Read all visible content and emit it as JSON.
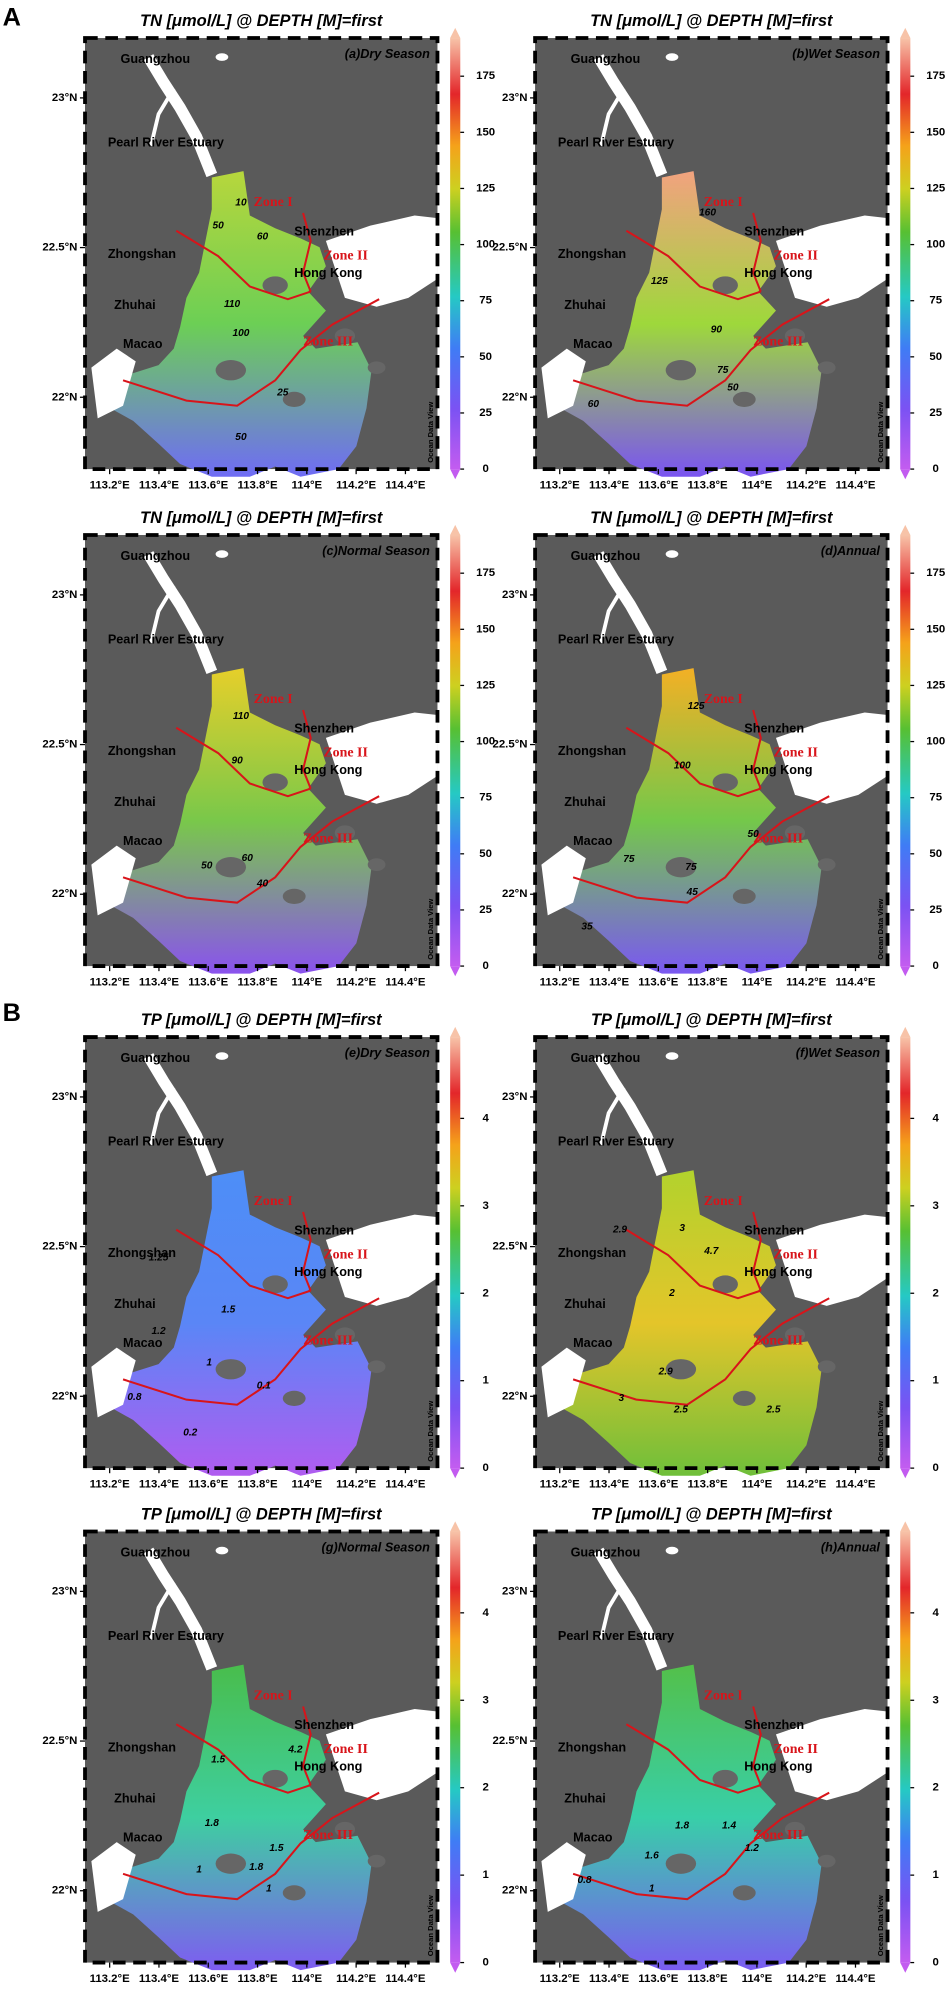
{
  "section_labels": [
    "A",
    "B"
  ],
  "place_names": [
    "Guangzhou",
    "Pearl River Estuary",
    "Zhongshan",
    "Shenzhen",
    "Hong Kong",
    "Zhuhai",
    "Macao"
  ],
  "zone_names": [
    "Zone I",
    "Zone II",
    "Zone III"
  ],
  "watermark": "Ocean Data View",
  "chart_data": [
    {
      "type": "contour_map",
      "title": "TN [μmol/L] @ DEPTH [M]=first",
      "subtitle": "(a)Dry Season",
      "xlim": [
        113.1,
        114.53
      ],
      "xticks": [
        {
          "value": 113.2,
          "label": "113.2°E"
        },
        {
          "value": 113.4,
          "label": "113.4°E"
        },
        {
          "value": 113.6,
          "label": "113.6°E"
        },
        {
          "value": 113.8,
          "label": "113.8°E"
        },
        {
          "value": 114,
          "label": "114°E"
        },
        {
          "value": 114.2,
          "label": "114.2°E"
        },
        {
          "value": 114.4,
          "label": "114.4°E"
        }
      ],
      "ylim": [
        21.76,
        23.2
      ],
      "yticks": [
        {
          "value": 22,
          "label": "22°N"
        },
        {
          "value": 22.5,
          "label": "22.5°N"
        },
        {
          "value": 23,
          "label": "23°N"
        }
      ],
      "clim": [
        0,
        192
      ],
      "cticks": [
        0,
        25,
        50,
        75,
        100,
        125,
        150,
        175
      ],
      "contour_labels": [
        10,
        50,
        60,
        110,
        100,
        25,
        50
      ],
      "colors": [
        "#b7d63c",
        "#6ccf55",
        "#6f6cf5"
      ]
    },
    {
      "type": "contour_map",
      "title": "TN [μmol/L] @ DEPTH [M]=first",
      "subtitle": "(b)Wet Season",
      "xlim": [
        113.1,
        114.53
      ],
      "xticks": [
        {
          "value": 113.2,
          "label": "113.2°E"
        },
        {
          "value": 113.4,
          "label": "113.4°E"
        },
        {
          "value": 113.6,
          "label": "113.6°E"
        },
        {
          "value": 113.8,
          "label": "113.8°E"
        },
        {
          "value": 114,
          "label": "114°E"
        },
        {
          "value": 114.2,
          "label": "114.2°E"
        },
        {
          "value": 114.4,
          "label": "114.4°E"
        }
      ],
      "ylim": [
        21.76,
        23.2
      ],
      "yticks": [
        {
          "value": 22,
          "label": "22°N"
        },
        {
          "value": 22.5,
          "label": "22.5°N"
        },
        {
          "value": 23,
          "label": "23°N"
        }
      ],
      "clim": [
        0,
        192
      ],
      "cticks": [
        0,
        25,
        50,
        75,
        100,
        125,
        150,
        175
      ],
      "contour_labels": [
        160,
        125,
        90,
        75,
        50,
        60
      ],
      "colors": [
        "#f2a27f",
        "#9ed83b",
        "#7a54f1"
      ]
    },
    {
      "type": "contour_map",
      "title": "TN [μmol/L] @ DEPTH [M]=first",
      "subtitle": "(c)Normal Season",
      "xlim": [
        113.1,
        114.53
      ],
      "xticks": [
        {
          "value": 113.2,
          "label": "113.2°E"
        },
        {
          "value": 113.4,
          "label": "113.4°E"
        },
        {
          "value": 113.6,
          "label": "113.6°E"
        },
        {
          "value": 113.8,
          "label": "113.8°E"
        },
        {
          "value": 114,
          "label": "114°E"
        },
        {
          "value": 114.2,
          "label": "114.2°E"
        },
        {
          "value": 114.4,
          "label": "114.4°E"
        }
      ],
      "ylim": [
        21.76,
        23.2
      ],
      "yticks": [
        {
          "value": 22,
          "label": "22°N"
        },
        {
          "value": 22.5,
          "label": "22.5°N"
        },
        {
          "value": 23,
          "label": "23°N"
        }
      ],
      "clim": [
        0,
        192
      ],
      "cticks": [
        0,
        25,
        50,
        75,
        100,
        125,
        150,
        175
      ],
      "contour_labels": [
        110,
        90,
        50,
        60,
        40
      ],
      "colors": [
        "#e6cf2a",
        "#79c84a",
        "#8a52ee"
      ]
    },
    {
      "type": "contour_map",
      "title": "TN [μmol/L] @ DEPTH [M]=first",
      "subtitle": "(d)Annual",
      "xlim": [
        113.1,
        114.53
      ],
      "xticks": [
        {
          "value": 113.2,
          "label": "113.2°E"
        },
        {
          "value": 113.4,
          "label": "113.4°E"
        },
        {
          "value": 113.6,
          "label": "113.6°E"
        },
        {
          "value": 113.8,
          "label": "113.8°E"
        },
        {
          "value": 114,
          "label": "114°E"
        },
        {
          "value": 114.2,
          "label": "114.2°E"
        },
        {
          "value": 114.4,
          "label": "114.4°E"
        }
      ],
      "ylim": [
        21.76,
        23.2
      ],
      "yticks": [
        {
          "value": 22,
          "label": "22°N"
        },
        {
          "value": 22.5,
          "label": "22.5°N"
        },
        {
          "value": 23,
          "label": "23°N"
        }
      ],
      "clim": [
        0,
        192
      ],
      "cticks": [
        0,
        25,
        50,
        75,
        100,
        125,
        150,
        175
      ],
      "contour_labels": [
        125,
        100,
        75,
        75,
        50,
        45,
        35
      ],
      "colors": [
        "#f3b025",
        "#74c84a",
        "#7a58f1"
      ]
    },
    {
      "type": "contour_map",
      "title": "TP [μmol/L] @ DEPTH [M]=first",
      "subtitle": "(e)Dry Season",
      "xlim": [
        113.1,
        114.53
      ],
      "xticks": [
        {
          "value": 113.2,
          "label": "113.2°E"
        },
        {
          "value": 113.4,
          "label": "113.4°E"
        },
        {
          "value": 113.6,
          "label": "113.6°E"
        },
        {
          "value": 113.8,
          "label": "113.8°E"
        },
        {
          "value": 114,
          "label": "114°E"
        },
        {
          "value": 114.2,
          "label": "114.2°E"
        },
        {
          "value": 114.4,
          "label": "114.4°E"
        }
      ],
      "ylim": [
        21.76,
        23.2
      ],
      "yticks": [
        {
          "value": 22,
          "label": "22°N"
        },
        {
          "value": 22.5,
          "label": "22.5°N"
        },
        {
          "value": 23,
          "label": "23°N"
        }
      ],
      "clim": [
        0,
        4.93
      ],
      "cticks": [
        0,
        1,
        2,
        3,
        4
      ],
      "contour_labels": [
        1.25,
        1.5,
        1.2,
        1,
        0.8,
        0.2,
        0.1
      ],
      "colors": [
        "#4d8ef7",
        "#5a86f6",
        "#b05cf0"
      ]
    },
    {
      "type": "contour_map",
      "title": "TP [μmol/L] @ DEPTH [M]=first",
      "subtitle": "(f)Wet Season",
      "xlim": [
        113.1,
        114.53
      ],
      "xticks": [
        {
          "value": 113.2,
          "label": "113.2°E"
        },
        {
          "value": 113.4,
          "label": "113.4°E"
        },
        {
          "value": 113.6,
          "label": "113.6°E"
        },
        {
          "value": 113.8,
          "label": "113.8°E"
        },
        {
          "value": 114,
          "label": "114°E"
        },
        {
          "value": 114.2,
          "label": "114.2°E"
        },
        {
          "value": 114.4,
          "label": "114.4°E"
        }
      ],
      "ylim": [
        21.76,
        23.2
      ],
      "yticks": [
        {
          "value": 22,
          "label": "22°N"
        },
        {
          "value": 22.5,
          "label": "22.5°N"
        },
        {
          "value": 23,
          "label": "23°N"
        }
      ],
      "clim": [
        0,
        4.93
      ],
      "cticks": [
        0,
        1,
        2,
        3,
        4
      ],
      "contour_labels": [
        2.9,
        3,
        4.7,
        2,
        2.9,
        3,
        2.5,
        2.5
      ],
      "colors": [
        "#b2d22d",
        "#e4c52a",
        "#6fbf3a"
      ]
    },
    {
      "type": "contour_map",
      "title": "TP [μmol/L] @ DEPTH [M]=first",
      "subtitle": "(g)Normal Season",
      "xlim": [
        113.1,
        114.53
      ],
      "xticks": [
        {
          "value": 113.2,
          "label": "113.2°E"
        },
        {
          "value": 113.4,
          "label": "113.4°E"
        },
        {
          "value": 113.6,
          "label": "113.6°E"
        },
        {
          "value": 113.8,
          "label": "113.8°E"
        },
        {
          "value": 114,
          "label": "114°E"
        },
        {
          "value": 114.2,
          "label": "114.2°E"
        },
        {
          "value": 114.4,
          "label": "114.4°E"
        }
      ],
      "ylim": [
        21.76,
        23.2
      ],
      "yticks": [
        {
          "value": 22,
          "label": "22°N"
        },
        {
          "value": 22.5,
          "label": "22.5°N"
        },
        {
          "value": 23,
          "label": "23°N"
        }
      ],
      "clim": [
        0,
        4.93
      ],
      "cticks": [
        0,
        1,
        2,
        3,
        4
      ],
      "contour_labels": [
        1.5,
        4.2,
        1.8,
        1,
        1.8,
        1.5,
        1
      ],
      "colors": [
        "#49bd4c",
        "#3ecfa0",
        "#7e5cf1"
      ]
    },
    {
      "type": "contour_map",
      "title": "TP [μmol/L] @ DEPTH [M]=first",
      "subtitle": "(h)Annual",
      "xlim": [
        113.1,
        114.53
      ],
      "xticks": [
        {
          "value": 113.2,
          "label": "113.2°E"
        },
        {
          "value": 113.4,
          "label": "113.4°E"
        },
        {
          "value": 113.6,
          "label": "113.6°E"
        },
        {
          "value": 113.8,
          "label": "113.8°E"
        },
        {
          "value": 114,
          "label": "114°E"
        },
        {
          "value": 114.2,
          "label": "114.2°E"
        },
        {
          "value": 114.4,
          "label": "114.4°E"
        }
      ],
      "ylim": [
        21.76,
        23.2
      ],
      "yticks": [
        {
          "value": 22,
          "label": "22°N"
        },
        {
          "value": 22.5,
          "label": "22.5°N"
        },
        {
          "value": 23,
          "label": "23°N"
        }
      ],
      "clim": [
        0,
        4.93
      ],
      "cticks": [
        0,
        1,
        2,
        3,
        4
      ],
      "contour_labels": [
        1.8,
        1.6,
        1.4,
        1.2,
        0.8,
        1
      ],
      "colors": [
        "#53c04a",
        "#38cfa8",
        "#7a5cf1"
      ]
    }
  ]
}
